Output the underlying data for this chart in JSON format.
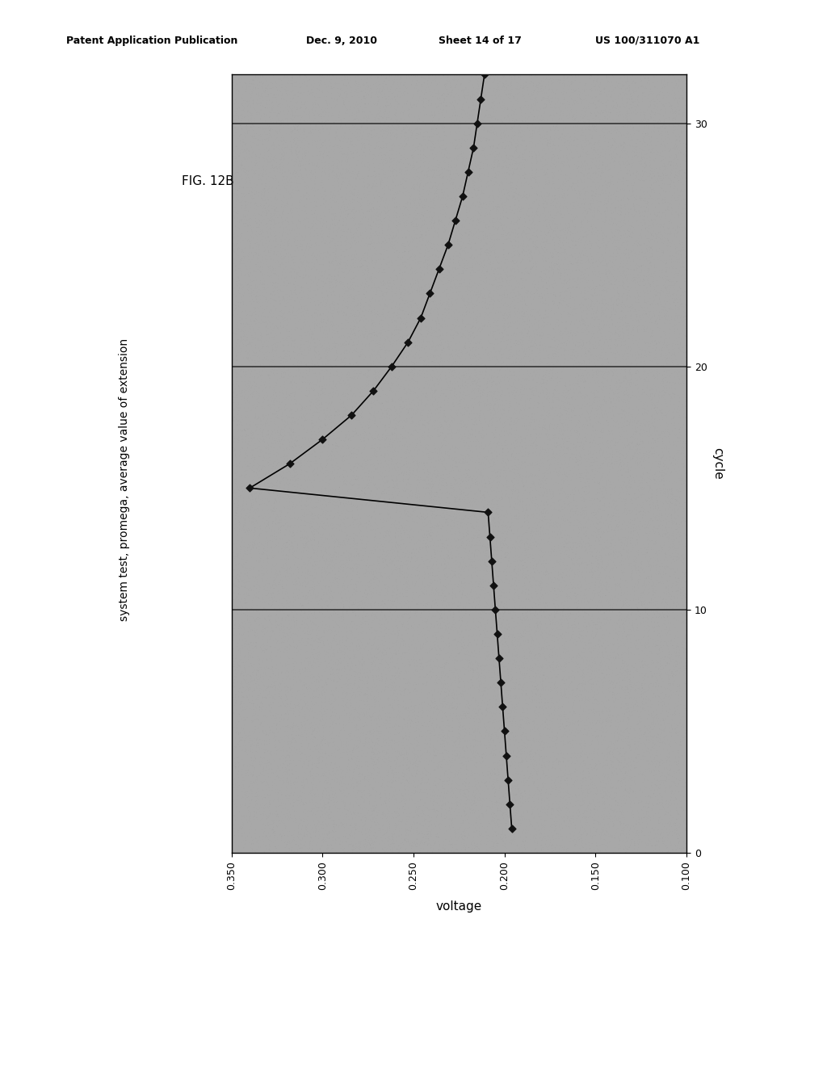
{
  "fig_label": "FIG. 12B",
  "side_label": "system test, promega, average value of extension",
  "xlabel_chart": "voltage",
  "ylabel_chart": "cycle",
  "header_left": "Patent Application Publication",
  "header_mid": "Dec. 9, 2010",
  "header_sheet": "Sheet 14 of 17",
  "header_right": "US 100/311070 A1",
  "cycle_data": [
    1,
    2,
    3,
    4,
    5,
    6,
    7,
    8,
    9,
    10,
    11,
    12,
    13,
    14,
    15,
    16,
    17,
    18,
    19,
    20,
    21,
    22,
    23,
    24,
    25,
    26,
    27,
    28,
    29,
    30,
    31,
    32
  ],
  "voltage_data": [
    0.196,
    0.197,
    0.198,
    0.199,
    0.2,
    0.201,
    0.202,
    0.203,
    0.204,
    0.205,
    0.206,
    0.207,
    0.208,
    0.209,
    0.34,
    0.318,
    0.3,
    0.284,
    0.272,
    0.262,
    0.253,
    0.246,
    0.241,
    0.236,
    0.231,
    0.227,
    0.223,
    0.22,
    0.217,
    0.215,
    0.213,
    0.211
  ],
  "xlim": [
    0.1,
    0.35
  ],
  "ylim": [
    0,
    32
  ],
  "xticks": [
    0.1,
    0.15,
    0.2,
    0.25,
    0.3,
    0.35
  ],
  "yticks": [
    0,
    10,
    20,
    30
  ],
  "hlines": [
    10,
    20,
    30
  ],
  "bg_color": "#a8a8a8",
  "line_color": "#000000",
  "marker_color": "#111111",
  "grid_color": "#333333"
}
